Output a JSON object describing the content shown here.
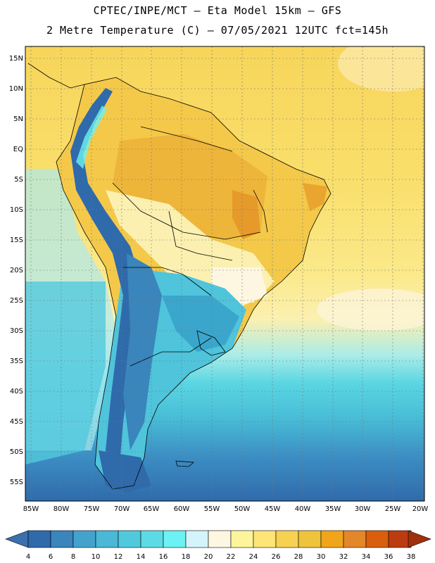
{
  "title_line1": "CPTEC/INPE/MCT –  Eta Model 15km – GFS",
  "title_line2": "2 Metre Temperature (C) – 07/05/2021 12UTC fct=145h",
  "lat_labels": [
    "15N",
    "10N",
    "5N",
    "EQ",
    "5S",
    "10S",
    "15S",
    "20S",
    "25S",
    "30S",
    "35S",
    "40S",
    "45S",
    "50S",
    "55S"
  ],
  "lon_labels": [
    "85W",
    "80W",
    "75W",
    "70W",
    "65W",
    "60W",
    "55W",
    "50W",
    "45W",
    "40W",
    "35W",
    "30W",
    "25W",
    "20W"
  ],
  "colorbar": {
    "ticks": [
      "4",
      "6",
      "8",
      "10",
      "12",
      "14",
      "16",
      "18",
      "20",
      "22",
      "24",
      "26",
      "28",
      "30",
      "32",
      "34",
      "36",
      "38"
    ],
    "colors": [
      "#3b6fae",
      "#2f6aab",
      "#3a85bb",
      "#44a3cd",
      "#4ab8d6",
      "#51c9dd",
      "#5cdbe6",
      "#6cf2f2",
      "#d4f4fb",
      "#fdf7e2",
      "#fdf59c",
      "#fde577",
      "#f7d152",
      "#eec43d",
      "#f1a51a",
      "#e4862a",
      "#d95f0e",
      "#bd3b10",
      "#a0300c"
    ]
  }
}
